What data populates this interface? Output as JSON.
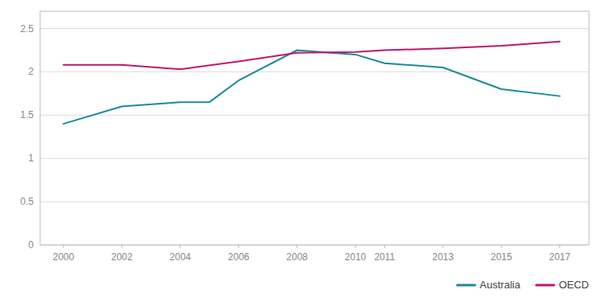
{
  "chart_data": {
    "type": "line",
    "series": [
      {
        "name": "Australia",
        "color": "#1a8a9a",
        "x": [
          2000,
          2002,
          2004,
          2005,
          2006,
          2008,
          2010,
          2011,
          2013,
          2015,
          2017
        ],
        "values": [
          1.4,
          1.6,
          1.65,
          1.65,
          1.9,
          2.25,
          2.2,
          2.1,
          2.05,
          1.8,
          1.72
        ]
      },
      {
        "name": "OECD",
        "color": "#c0186a",
        "x": [
          2000,
          2002,
          2004,
          2006,
          2008,
          2010,
          2011,
          2013,
          2015,
          2017
        ],
        "values": [
          2.08,
          2.08,
          2.03,
          2.12,
          2.22,
          2.23,
          2.25,
          2.27,
          2.3,
          2.35
        ]
      }
    ],
    "xlim": [
      1999.2,
      2018.0
    ],
    "xticks": [
      2000,
      2002,
      2004,
      2006,
      2008,
      2010,
      2011,
      2013,
      2015,
      2017
    ],
    "ylim": [
      0,
      2.7
    ],
    "yticks": [
      0,
      0.5,
      1,
      1.5,
      2,
      2.5
    ],
    "grid": true,
    "legend": "bottom-right"
  }
}
